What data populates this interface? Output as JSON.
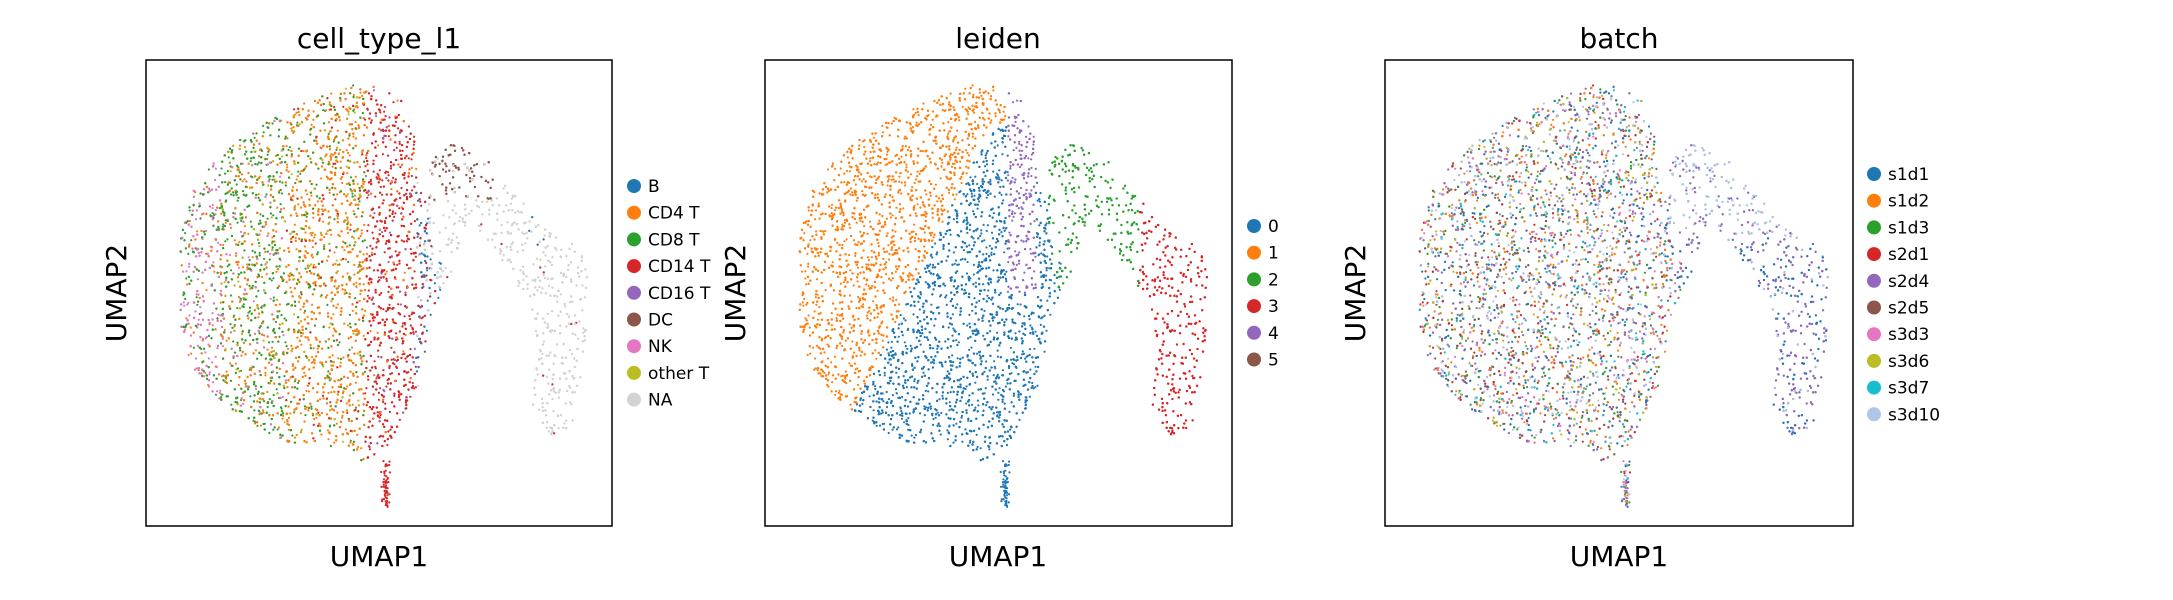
{
  "chart_data": [
    {
      "type": "scatter",
      "title": "cell_type_l1",
      "xlabel": "UMAP1",
      "ylabel": "UMAP2",
      "grid": false,
      "legend": "right",
      "categories": [
        "B",
        "CD4 T",
        "CD8 T",
        "CD14 T",
        "CD16 T",
        "DC",
        "NK",
        "other T",
        "NA"
      ],
      "colors": [
        "#1f77b4",
        "#ff7f0e",
        "#2ca02c",
        "#d62728",
        "#9467bd",
        "#8c564b",
        "#e377c2",
        "#bcbd22",
        "#d3d3d3"
      ]
    },
    {
      "type": "scatter",
      "title": "leiden",
      "xlabel": "UMAP1",
      "ylabel": "UMAP2",
      "grid": false,
      "legend": "right",
      "categories": [
        "0",
        "1",
        "2",
        "3",
        "4",
        "5"
      ],
      "colors": [
        "#1f77b4",
        "#ff7f0e",
        "#2ca02c",
        "#d62728",
        "#9467bd",
        "#8c564b"
      ]
    },
    {
      "type": "scatter",
      "title": "batch",
      "xlabel": "UMAP1",
      "ylabel": "UMAP2",
      "grid": false,
      "legend": "right",
      "categories": [
        "s1d1",
        "s1d2",
        "s1d3",
        "s2d1",
        "s2d4",
        "s2d5",
        "s3d3",
        "s3d6",
        "s3d7",
        "s3d10"
      ],
      "colors": [
        "#1f77b4",
        "#ff7f0e",
        "#2ca02c",
        "#d62728",
        "#9467bd",
        "#8c564b",
        "#e377c2",
        "#bcbd22",
        "#17becf",
        "#aec7e8"
      ]
    }
  ]
}
